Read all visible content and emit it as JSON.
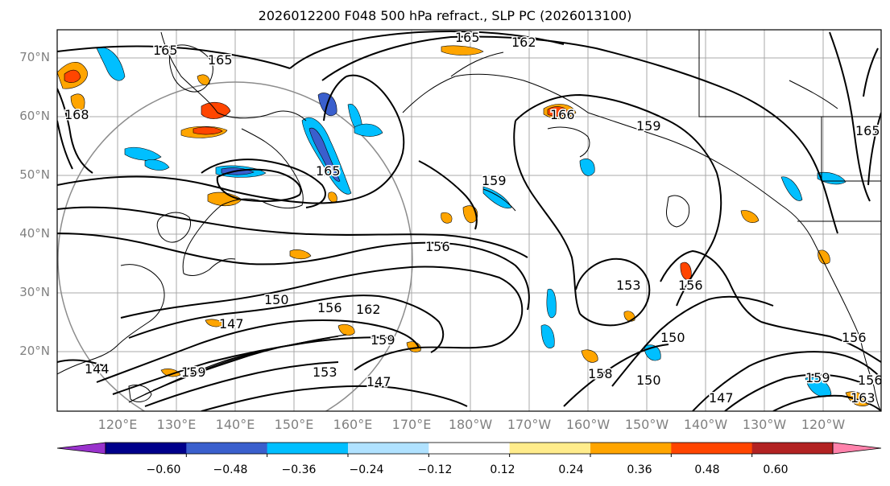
{
  "title": "2026012200 F048 500 hPa refract., SLP PC (2026013100)",
  "lat_labels": [
    "70°N",
    "60°N",
    "50°N",
    "40°N",
    "30°N",
    "20°N"
  ],
  "lon_labels": [
    "120°E",
    "130°E",
    "140°E",
    "150°E",
    "160°E",
    "170°E",
    "180°W",
    "170°W",
    "160°W",
    "150°W",
    "140°W",
    "130°W",
    "120°W"
  ],
  "colorbar": {
    "ticks": [
      "−0.60",
      "−0.48",
      "−0.36",
      "−0.24",
      "−0.12",
      "0.12",
      "0.24",
      "0.36",
      "0.48",
      "0.60"
    ],
    "colors": [
      "#9932cc",
      "#00008b",
      "#3a5fcd",
      "#00bfff",
      "#b0e2ff",
      "#ffffff",
      "#ffec8b",
      "#ffa500",
      "#ff4500",
      "#b22222",
      "#ff82ab"
    ]
  },
  "contour_labels": [
    "165",
    "162",
    "165",
    "165",
    "168",
    "166",
    "159",
    "165",
    "159",
    "156",
    "150",
    "147",
    "156",
    "162",
    "159",
    "153",
    "147",
    "144",
    "159",
    "153",
    "150",
    "156",
    "147",
    "156",
    "150",
    "159",
    "158",
    "156",
    "165",
    "163"
  ]
}
